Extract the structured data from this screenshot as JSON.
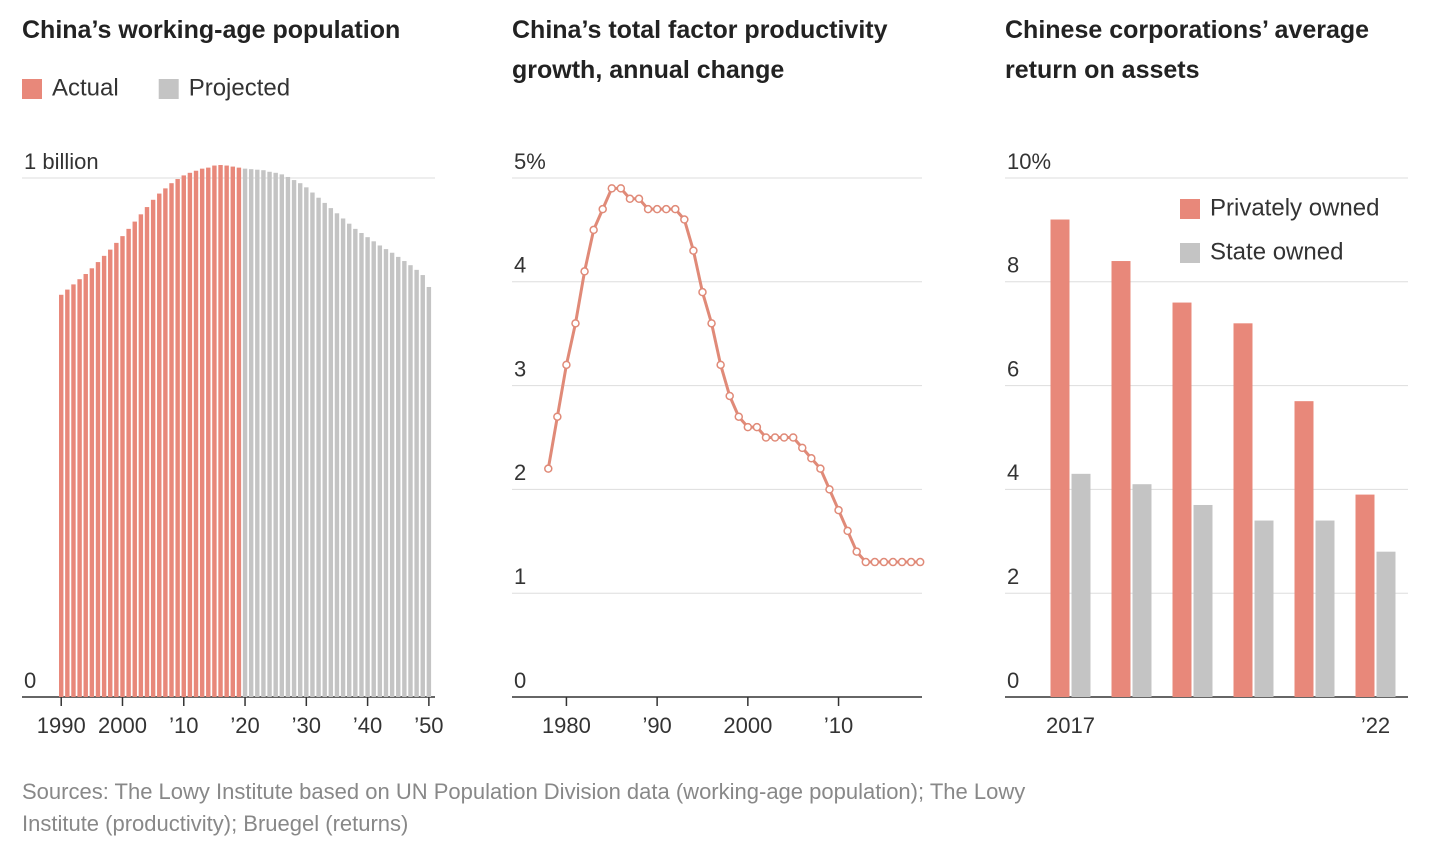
{
  "chart_data": [
    {
      "type": "bar",
      "title": "China’s working-age population",
      "x": [
        1990,
        1991,
        1992,
        1993,
        1994,
        1995,
        1996,
        1997,
        1998,
        1999,
        2000,
        2001,
        2002,
        2003,
        2004,
        2005,
        2006,
        2007,
        2008,
        2009,
        2010,
        2011,
        2012,
        2013,
        2014,
        2015,
        2016,
        2017,
        2018,
        2019,
        2020,
        2021,
        2022,
        2023,
        2024,
        2025,
        2026,
        2027,
        2028,
        2029,
        2030,
        2031,
        2032,
        2033,
        2034,
        2035,
        2036,
        2037,
        2038,
        2039,
        2040,
        2041,
        2042,
        2043,
        2044,
        2045,
        2046,
        2047,
        2048,
        2049,
        2050
      ],
      "series": [
        {
          "name": "Actual",
          "color": "#e8887a",
          "values": [
            0.775,
            0.785,
            0.795,
            0.805,
            0.815,
            0.826,
            0.838,
            0.85,
            0.862,
            0.875,
            0.888,
            0.902,
            0.916,
            0.93,
            0.944,
            0.958,
            0.97,
            0.98,
            0.99,
            0.998,
            1.005,
            1.01,
            1.014,
            1.018,
            1.02,
            1.024,
            1.025,
            1.024,
            1.022,
            1.02,
            null,
            null,
            null,
            null,
            null,
            null,
            null,
            null,
            null,
            null,
            null,
            null,
            null,
            null,
            null,
            null,
            null,
            null,
            null,
            null,
            null,
            null,
            null,
            null,
            null,
            null,
            null,
            null,
            null,
            null,
            null
          ]
        },
        {
          "name": "Projected",
          "color": "#c4c4c4",
          "values": [
            null,
            null,
            null,
            null,
            null,
            null,
            null,
            null,
            null,
            null,
            null,
            null,
            null,
            null,
            null,
            null,
            null,
            null,
            null,
            null,
            null,
            null,
            null,
            null,
            null,
            null,
            null,
            null,
            null,
            null,
            1.018,
            1.017,
            1.016,
            1.015,
            1.012,
            1.01,
            1.007,
            1.002,
            0.996,
            0.99,
            0.982,
            0.972,
            0.962,
            0.952,
            0.942,
            0.932,
            0.922,
            0.912,
            0.902,
            0.894,
            0.886,
            0.878,
            0.87,
            0.863,
            0.856,
            0.848,
            0.84,
            0.832,
            0.823,
            0.813,
            0.79
          ]
        }
      ],
      "xlim": [
        1983.6,
        2051
      ],
      "xticks": [
        1990,
        2000,
        {
          "value": 2010,
          "label": "’10"
        },
        {
          "value": 2020,
          "label": "’20"
        },
        {
          "value": 2030,
          "label": "’30"
        },
        {
          "value": 2040,
          "label": "’40"
        },
        {
          "value": 2050,
          "label": "’50"
        }
      ],
      "ylim": [
        0,
        1
      ],
      "yticks": [
        0,
        {
          "value": 1,
          "label": "1 billion"
        }
      ],
      "grid": true,
      "legend": "top-left"
    },
    {
      "type": "line",
      "title": "China’s total factor productivity growth, annual change",
      "x": [
        1978,
        1979,
        1980,
        1981,
        1982,
        1983,
        1984,
        1985,
        1986,
        1987,
        1988,
        1989,
        1990,
        1991,
        1992,
        1993,
        1994,
        1995,
        1996,
        1997,
        1998,
        1999,
        2000,
        2001,
        2002,
        2003,
        2004,
        2005,
        2006,
        2007,
        2008,
        2009,
        2010,
        2011,
        2012,
        2013,
        2014,
        2015,
        2016,
        2017,
        2018,
        2019
      ],
      "values": [
        2.2,
        2.7,
        3.2,
        3.6,
        4.1,
        4.5,
        4.7,
        4.9,
        4.9,
        4.8,
        4.8,
        4.7,
        4.7,
        4.7,
        4.7,
        4.6,
        4.3,
        3.9,
        3.6,
        3.2,
        2.9,
        2.7,
        2.6,
        2.6,
        2.5,
        2.5,
        2.5,
        2.5,
        2.4,
        2.3,
        2.2,
        2.0,
        1.8,
        1.6,
        1.4,
        1.3,
        1.3,
        1.3,
        1.3,
        1.3,
        1.3,
        1.3
      ],
      "color": "#e08a78",
      "markers": true,
      "xlim": [
        1974,
        2019.2
      ],
      "xticks": [
        1980,
        {
          "value": 1990,
          "label": "’90"
        },
        2000,
        {
          "value": 2010,
          "label": "’10"
        }
      ],
      "ylim": [
        0,
        5
      ],
      "yticks": [
        0,
        1,
        2,
        3,
        4,
        {
          "value": 5,
          "label": "5%"
        }
      ],
      "grid": true
    },
    {
      "type": "bar",
      "title": "Chinese corporations’ average return on assets",
      "categories": [
        "2017",
        null,
        null,
        null,
        null,
        "’22"
      ],
      "series": [
        {
          "name": "Privately owned",
          "color": "#e8887a",
          "values": [
            9.2,
            8.4,
            7.6,
            7.2,
            5.7,
            3.9
          ]
        },
        {
          "name": "State owned",
          "color": "#c4c4c4",
          "values": [
            4.3,
            4.1,
            3.7,
            3.4,
            3.4,
            2.8
          ]
        }
      ],
      "ylim": [
        0,
        10
      ],
      "yticks": [
        0,
        2,
        4,
        6,
        8,
        {
          "value": 10,
          "label": "10%"
        }
      ],
      "grid": true,
      "legend": "top-right"
    }
  ],
  "sources": "Sources: The Lowy Institute based on UN Population Division data (working-age population); The Lowy Institute (productivity); Bruegel (returns)"
}
